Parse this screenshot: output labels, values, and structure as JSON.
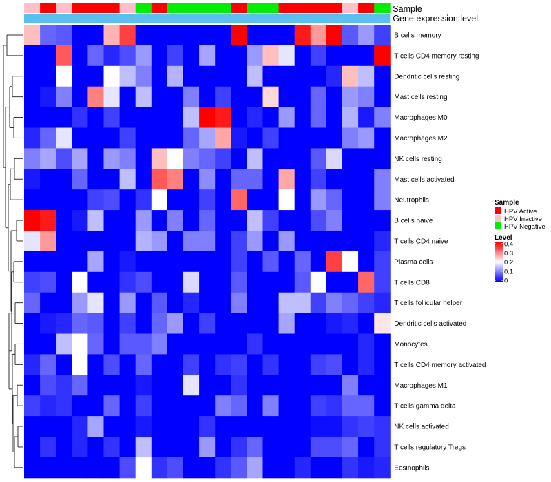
{
  "chart_data": {
    "type": "heatmap",
    "title": "",
    "annotation_labels": {
      "sample": "Sample",
      "expression": "Gene expression level"
    },
    "sample_groups": [
      "Inactive",
      "Active",
      "Inactive",
      "Active",
      "Active",
      "Active",
      "Inactive",
      "Negative",
      "Active",
      "Negative",
      "Negative",
      "Negative",
      "Negative",
      "Active",
      "Negative",
      "Negative",
      "Active",
      "Active",
      "Active",
      "Active",
      "Inactive",
      "Active",
      "Negative"
    ],
    "sample_colors": {
      "Active": "#ff0000",
      "Inactive": "#ffc0cb",
      "Negative": "#00ee00"
    },
    "expression_bar_color": "#5bc0f0",
    "rows": [
      "B cells memory",
      "T cells CD4 memory resting",
      "Dendritic cells resting",
      "Mast cells resting",
      "Macrophages M0",
      "Macrophages M2",
      "NK cells resting",
      "Mast cells activated",
      "Neutrophils",
      "B cells naive",
      "T cells CD4 naive",
      "Plasma cells",
      "T cells CD8",
      "T cells follicular helper",
      "Dendritic cells activated",
      "Monocytes",
      "T cells CD4 memory activated",
      "Macrophages M1",
      "T cells gamma delta",
      "NK cells activated",
      "T cells regulatory  Tregs",
      "Eosinophils"
    ],
    "values": [
      [
        0.25,
        0.08,
        0.07,
        0,
        0,
        0.26,
        0.35,
        0,
        0,
        0,
        0,
        0,
        0,
        0.4,
        0,
        0,
        0,
        0.38,
        0.28,
        0.4,
        0.07,
        0.12,
        0.05
      ],
      [
        0,
        0,
        0.33,
        0,
        0.08,
        0.03,
        0.06,
        0.12,
        0,
        0.05,
        0,
        0.13,
        0,
        0,
        0.12,
        0.25,
        0.18,
        0,
        0.05,
        0,
        0,
        0,
        0.4
      ],
      [
        0,
        0,
        0.2,
        0,
        0,
        0.2,
        0.15,
        0.1,
        0,
        0.14,
        0,
        0,
        0,
        0,
        0.15,
        0,
        0,
        0,
        0,
        0.03,
        0.25,
        0.15,
        0
      ],
      [
        0,
        0.02,
        0.1,
        0,
        0.3,
        0.18,
        0,
        0.15,
        0,
        0,
        0.1,
        0,
        0.05,
        0,
        0,
        0.23,
        0,
        0,
        0.08,
        0,
        0.12,
        0.1,
        0
      ],
      [
        0,
        0,
        0,
        0.04,
        0,
        0.05,
        0,
        0,
        0,
        0,
        0.15,
        0.4,
        0.38,
        0,
        0.03,
        0,
        0.12,
        0,
        0.08,
        0,
        0.14,
        0.02,
        0.1
      ],
      [
        0.03,
        0.08,
        0.18,
        0,
        0,
        0,
        0.05,
        0,
        0,
        0,
        0.08,
        0.13,
        0.27,
        0.02,
        0,
        0.05,
        0,
        0,
        0,
        0,
        0.1,
        0.12,
        0
      ],
      [
        0.1,
        0.13,
        0.06,
        0.13,
        0,
        0.12,
        0.1,
        0,
        0.25,
        0.2,
        0.1,
        0.08,
        0.05,
        0,
        0.15,
        0,
        0,
        0,
        0.07,
        0.17,
        0,
        0,
        0
      ],
      [
        0.02,
        0,
        0,
        0.08,
        0,
        0,
        0.15,
        0,
        0.33,
        0.3,
        0,
        0.11,
        0,
        0.08,
        0.08,
        0,
        0.27,
        0,
        0.05,
        0,
        0,
        0,
        0.1
      ],
      [
        0,
        0,
        0,
        0,
        0.05,
        0.06,
        0,
        0.04,
        0.2,
        0,
        0,
        0.05,
        0,
        0.32,
        0,
        0,
        0.2,
        0,
        0.12,
        0.08,
        0,
        0,
        0.1
      ],
      [
        0.4,
        0.38,
        0,
        0.02,
        0.15,
        0,
        0,
        0.12,
        0,
        0.1,
        0,
        0.08,
        0,
        0,
        0.15,
        0.05,
        0,
        0,
        0.06,
        0.1,
        0,
        0,
        0
      ],
      [
        0.18,
        0.28,
        0,
        0,
        0,
        0,
        0,
        0.14,
        0.12,
        0,
        0.1,
        0.1,
        0,
        0.05,
        0.12,
        0,
        0.12,
        0,
        0,
        0,
        0,
        0,
        0.03
      ],
      [
        0,
        0,
        0,
        0,
        0.13,
        0,
        0.02,
        0,
        0,
        0,
        0,
        0,
        0,
        0.05,
        0,
        0.07,
        0,
        0.08,
        0,
        0.35,
        0.2,
        0,
        0.05
      ],
      [
        0.05,
        0.06,
        0,
        0.2,
        0,
        0,
        0.04,
        0.06,
        0,
        0,
        0.17,
        0,
        0,
        0.07,
        0,
        0,
        0,
        0.07,
        0.2,
        0,
        0,
        0.32,
        0.05
      ],
      [
        0.08,
        0,
        0,
        0.12,
        0.18,
        0,
        0.12,
        0,
        0.07,
        0,
        0.03,
        0,
        0,
        0.1,
        0,
        0,
        0.15,
        0.15,
        0.05,
        0.1,
        0.08,
        0.05,
        0.03
      ],
      [
        0,
        0.02,
        0.03,
        0.08,
        0.07,
        0,
        0.05,
        0,
        0.08,
        0.12,
        0,
        0.05,
        0,
        0,
        0,
        0,
        0.13,
        0,
        0,
        0.02,
        0.03,
        0,
        0.22
      ],
      [
        0,
        0,
        0.15,
        0.2,
        0.08,
        0,
        0.07,
        0.07,
        0.1,
        0,
        0,
        0,
        0,
        0,
        0.04,
        0,
        0,
        0,
        0,
        0,
        0,
        0.03,
        0
      ],
      [
        0.03,
        0.08,
        0,
        0.2,
        0,
        0.06,
        0,
        0.08,
        0,
        0,
        0.05,
        0,
        0.04,
        0.05,
        0,
        0.04,
        0,
        0,
        0.05,
        0.06,
        0,
        0.03,
        0
      ],
      [
        0,
        0.06,
        0.04,
        0.08,
        0,
        0,
        0,
        0.02,
        0,
        0,
        0.18,
        0,
        0,
        0.04,
        0,
        0,
        0,
        0,
        0,
        0,
        0.1,
        0,
        0
      ],
      [
        0.05,
        0.03,
        0.04,
        0,
        0,
        0.08,
        0,
        0.05,
        0,
        0,
        0,
        0,
        0.1,
        0.08,
        0,
        0.1,
        0,
        0,
        0.05,
        0.04,
        0.08,
        0.08,
        0
      ],
      [
        0,
        0,
        0,
        0.03,
        0.13,
        0,
        0,
        0.02,
        0,
        0,
        0,
        0.04,
        0,
        0,
        0,
        0,
        0,
        0,
        0.01,
        0.01,
        0.04,
        0.05,
        0.04
      ],
      [
        0,
        0.04,
        0,
        0.03,
        0,
        0.04,
        0,
        0.15,
        0,
        0,
        0,
        0.12,
        0,
        0.04,
        0.08,
        0,
        0,
        0,
        0.06,
        0.06,
        0.08,
        0,
        0.04
      ],
      [
        0,
        0,
        0,
        0,
        0,
        0,
        0.06,
        0.2,
        0.04,
        0.06,
        0,
        0,
        0.04,
        0.07,
        0.13,
        0,
        0,
        0.03,
        0,
        0,
        0.04,
        0.02,
        0.03
      ]
    ],
    "color_scale": {
      "min": 0,
      "max": 0.4,
      "low": "#0000ff",
      "mid": "#ffffff",
      "high": "#ff0000"
    },
    "legend": {
      "sample_title": "Sample",
      "sample_entries": [
        {
          "label": "HPV Active",
          "color": "#ff0000"
        },
        {
          "label": "HPV Inactive",
          "color": "#ffc0cb"
        },
        {
          "label": "HPV Negative",
          "color": "#00ee00"
        }
      ],
      "level_title": "Level",
      "level_ticks": [
        "0.4",
        "0.3",
        "0.2",
        "0.1",
        "0"
      ]
    }
  }
}
